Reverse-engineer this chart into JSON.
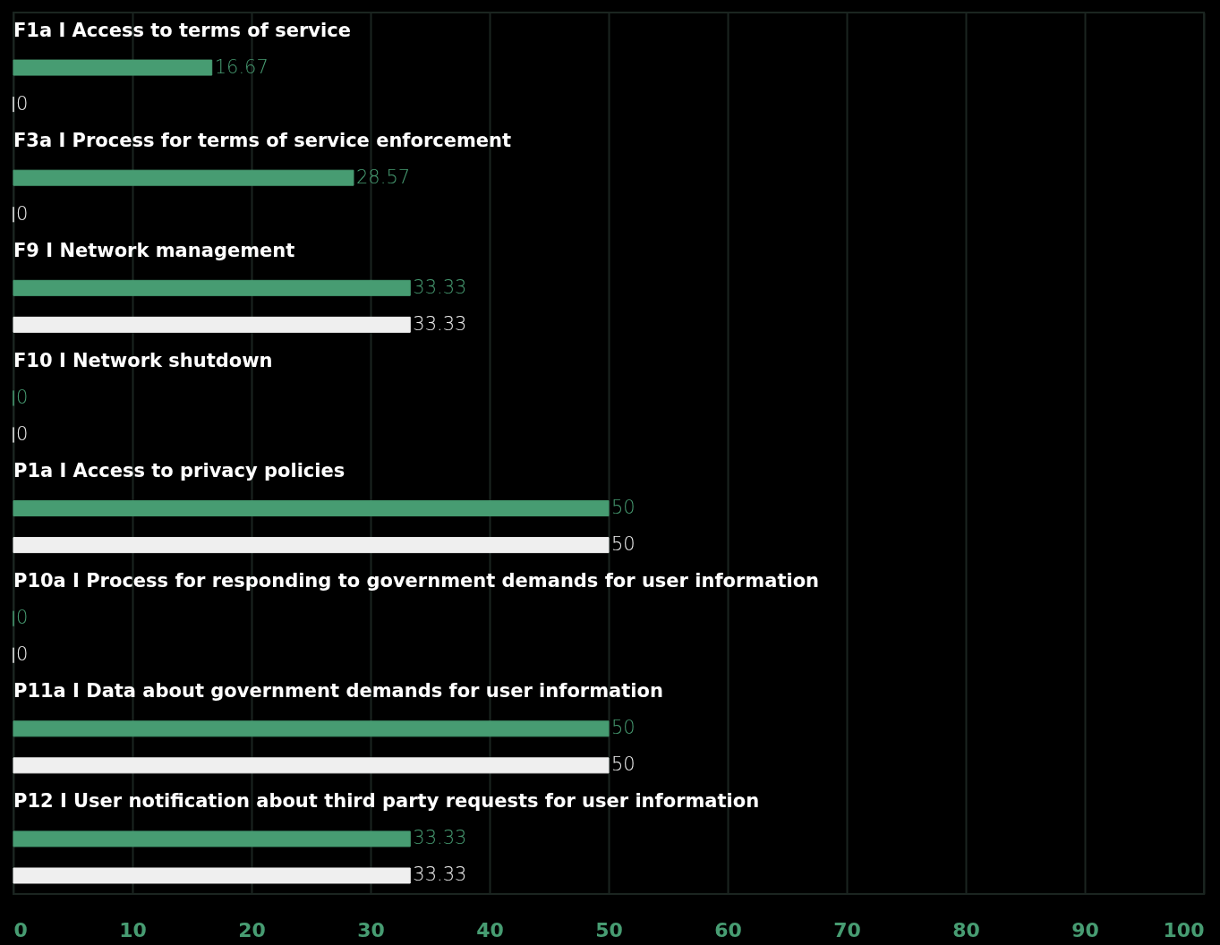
{
  "chart_data": {
    "type": "bar",
    "orientation": "horizontal",
    "categories": [
      "F1a I Access to terms of service",
      "F3a I Process for terms of service enforcement",
      "F9 I Network management",
      "F10 I Network shutdown",
      "P1a I Access to privacy policies",
      "P10a I Process for responding to government demands for user information",
      "P11a I Data about government demands for user information",
      "P12 I User notification about third party requests for user information"
    ],
    "series": [
      {
        "color": "#479c72",
        "values": [
          16.67,
          28.57,
          33.33,
          0,
          50,
          0,
          50,
          33.33
        ]
      },
      {
        "color": "#efefef",
        "values": [
          0,
          0,
          33.33,
          0,
          50,
          0,
          50,
          33.33
        ]
      }
    ],
    "xlim": [
      0,
      100
    ],
    "xticks": [
      0,
      10,
      20,
      30,
      40,
      50,
      60,
      70,
      80,
      90,
      100
    ],
    "grid": "x",
    "data_labels": true
  }
}
